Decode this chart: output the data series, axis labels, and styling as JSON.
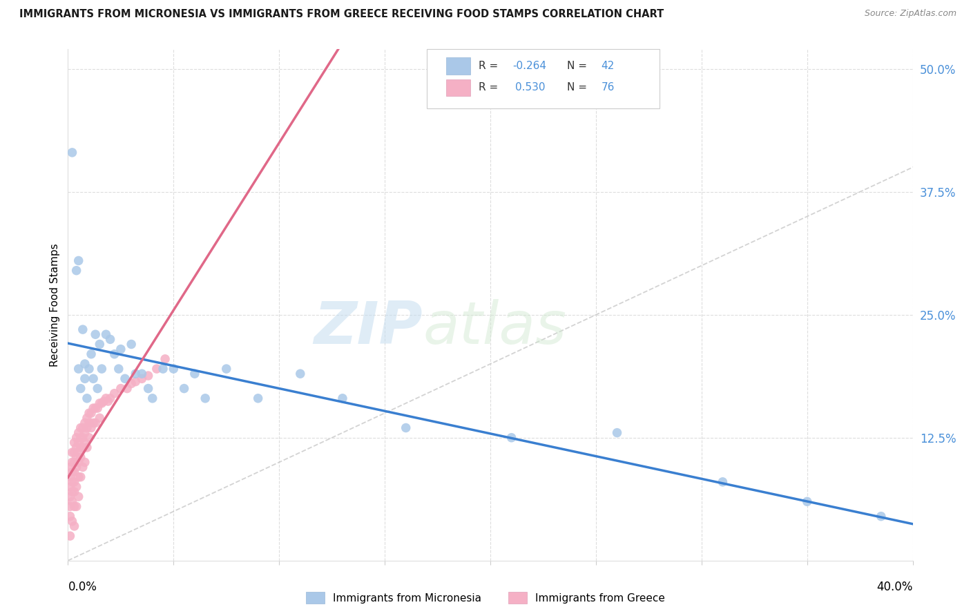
{
  "title": "IMMIGRANTS FROM MICRONESIA VS IMMIGRANTS FROM GREECE RECEIVING FOOD STAMPS CORRELATION CHART",
  "source": "Source: ZipAtlas.com",
  "ylabel": "Receiving Food Stamps",
  "yticks": [
    0.0,
    0.125,
    0.25,
    0.375,
    0.5
  ],
  "ytick_labels": [
    "",
    "12.5%",
    "25.0%",
    "37.5%",
    "50.0%"
  ],
  "xlim": [
    0.0,
    0.4
  ],
  "ylim": [
    0.0,
    0.52
  ],
  "color_micronesia": "#aac8e8",
  "color_greece": "#f5b0c5",
  "color_micronesia_line": "#3a7fd0",
  "color_greece_line": "#e06888",
  "color_diagonal": "#c8c8c8",
  "watermark_zip": "ZIP",
  "watermark_atlas": "atlas",
  "micronesia_x": [
    0.002,
    0.004,
    0.005,
    0.005,
    0.006,
    0.007,
    0.008,
    0.008,
    0.009,
    0.01,
    0.011,
    0.012,
    0.013,
    0.014,
    0.015,
    0.016,
    0.018,
    0.02,
    0.022,
    0.024,
    0.025,
    0.027,
    0.03,
    0.032,
    0.035,
    0.038,
    0.04,
    0.045,
    0.05,
    0.055,
    0.06,
    0.065,
    0.075,
    0.09,
    0.11,
    0.13,
    0.16,
    0.21,
    0.26,
    0.31,
    0.35,
    0.385
  ],
  "micronesia_y": [
    0.415,
    0.295,
    0.305,
    0.195,
    0.175,
    0.235,
    0.2,
    0.185,
    0.165,
    0.195,
    0.21,
    0.185,
    0.23,
    0.175,
    0.22,
    0.195,
    0.23,
    0.225,
    0.21,
    0.195,
    0.215,
    0.185,
    0.22,
    0.19,
    0.19,
    0.175,
    0.165,
    0.195,
    0.195,
    0.175,
    0.19,
    0.165,
    0.195,
    0.165,
    0.19,
    0.165,
    0.135,
    0.125,
    0.13,
    0.08,
    0.06,
    0.045
  ],
  "greece_x": [
    0.001,
    0.001,
    0.001,
    0.001,
    0.001,
    0.001,
    0.001,
    0.002,
    0.002,
    0.002,
    0.002,
    0.002,
    0.002,
    0.002,
    0.003,
    0.003,
    0.003,
    0.003,
    0.003,
    0.003,
    0.003,
    0.003,
    0.004,
    0.004,
    0.004,
    0.004,
    0.004,
    0.004,
    0.005,
    0.005,
    0.005,
    0.005,
    0.005,
    0.005,
    0.006,
    0.006,
    0.006,
    0.006,
    0.006,
    0.007,
    0.007,
    0.007,
    0.007,
    0.008,
    0.008,
    0.008,
    0.008,
    0.009,
    0.009,
    0.009,
    0.01,
    0.01,
    0.01,
    0.011,
    0.011,
    0.012,
    0.012,
    0.013,
    0.013,
    0.014,
    0.015,
    0.015,
    0.016,
    0.017,
    0.018,
    0.019,
    0.02,
    0.022,
    0.025,
    0.028,
    0.03,
    0.032,
    0.035,
    0.038,
    0.042,
    0.046
  ],
  "greece_y": [
    0.095,
    0.085,
    0.075,
    0.065,
    0.055,
    0.045,
    0.025,
    0.11,
    0.1,
    0.09,
    0.08,
    0.07,
    0.06,
    0.04,
    0.12,
    0.11,
    0.1,
    0.09,
    0.08,
    0.07,
    0.055,
    0.035,
    0.125,
    0.115,
    0.105,
    0.095,
    0.075,
    0.055,
    0.13,
    0.12,
    0.11,
    0.1,
    0.085,
    0.065,
    0.135,
    0.125,
    0.115,
    0.105,
    0.085,
    0.135,
    0.125,
    0.115,
    0.095,
    0.14,
    0.13,
    0.12,
    0.1,
    0.145,
    0.135,
    0.115,
    0.15,
    0.14,
    0.125,
    0.15,
    0.135,
    0.155,
    0.14,
    0.155,
    0.14,
    0.155,
    0.16,
    0.145,
    0.16,
    0.162,
    0.165,
    0.162,
    0.165,
    0.17,
    0.175,
    0.175,
    0.18,
    0.182,
    0.185,
    0.188,
    0.195,
    0.205
  ]
}
